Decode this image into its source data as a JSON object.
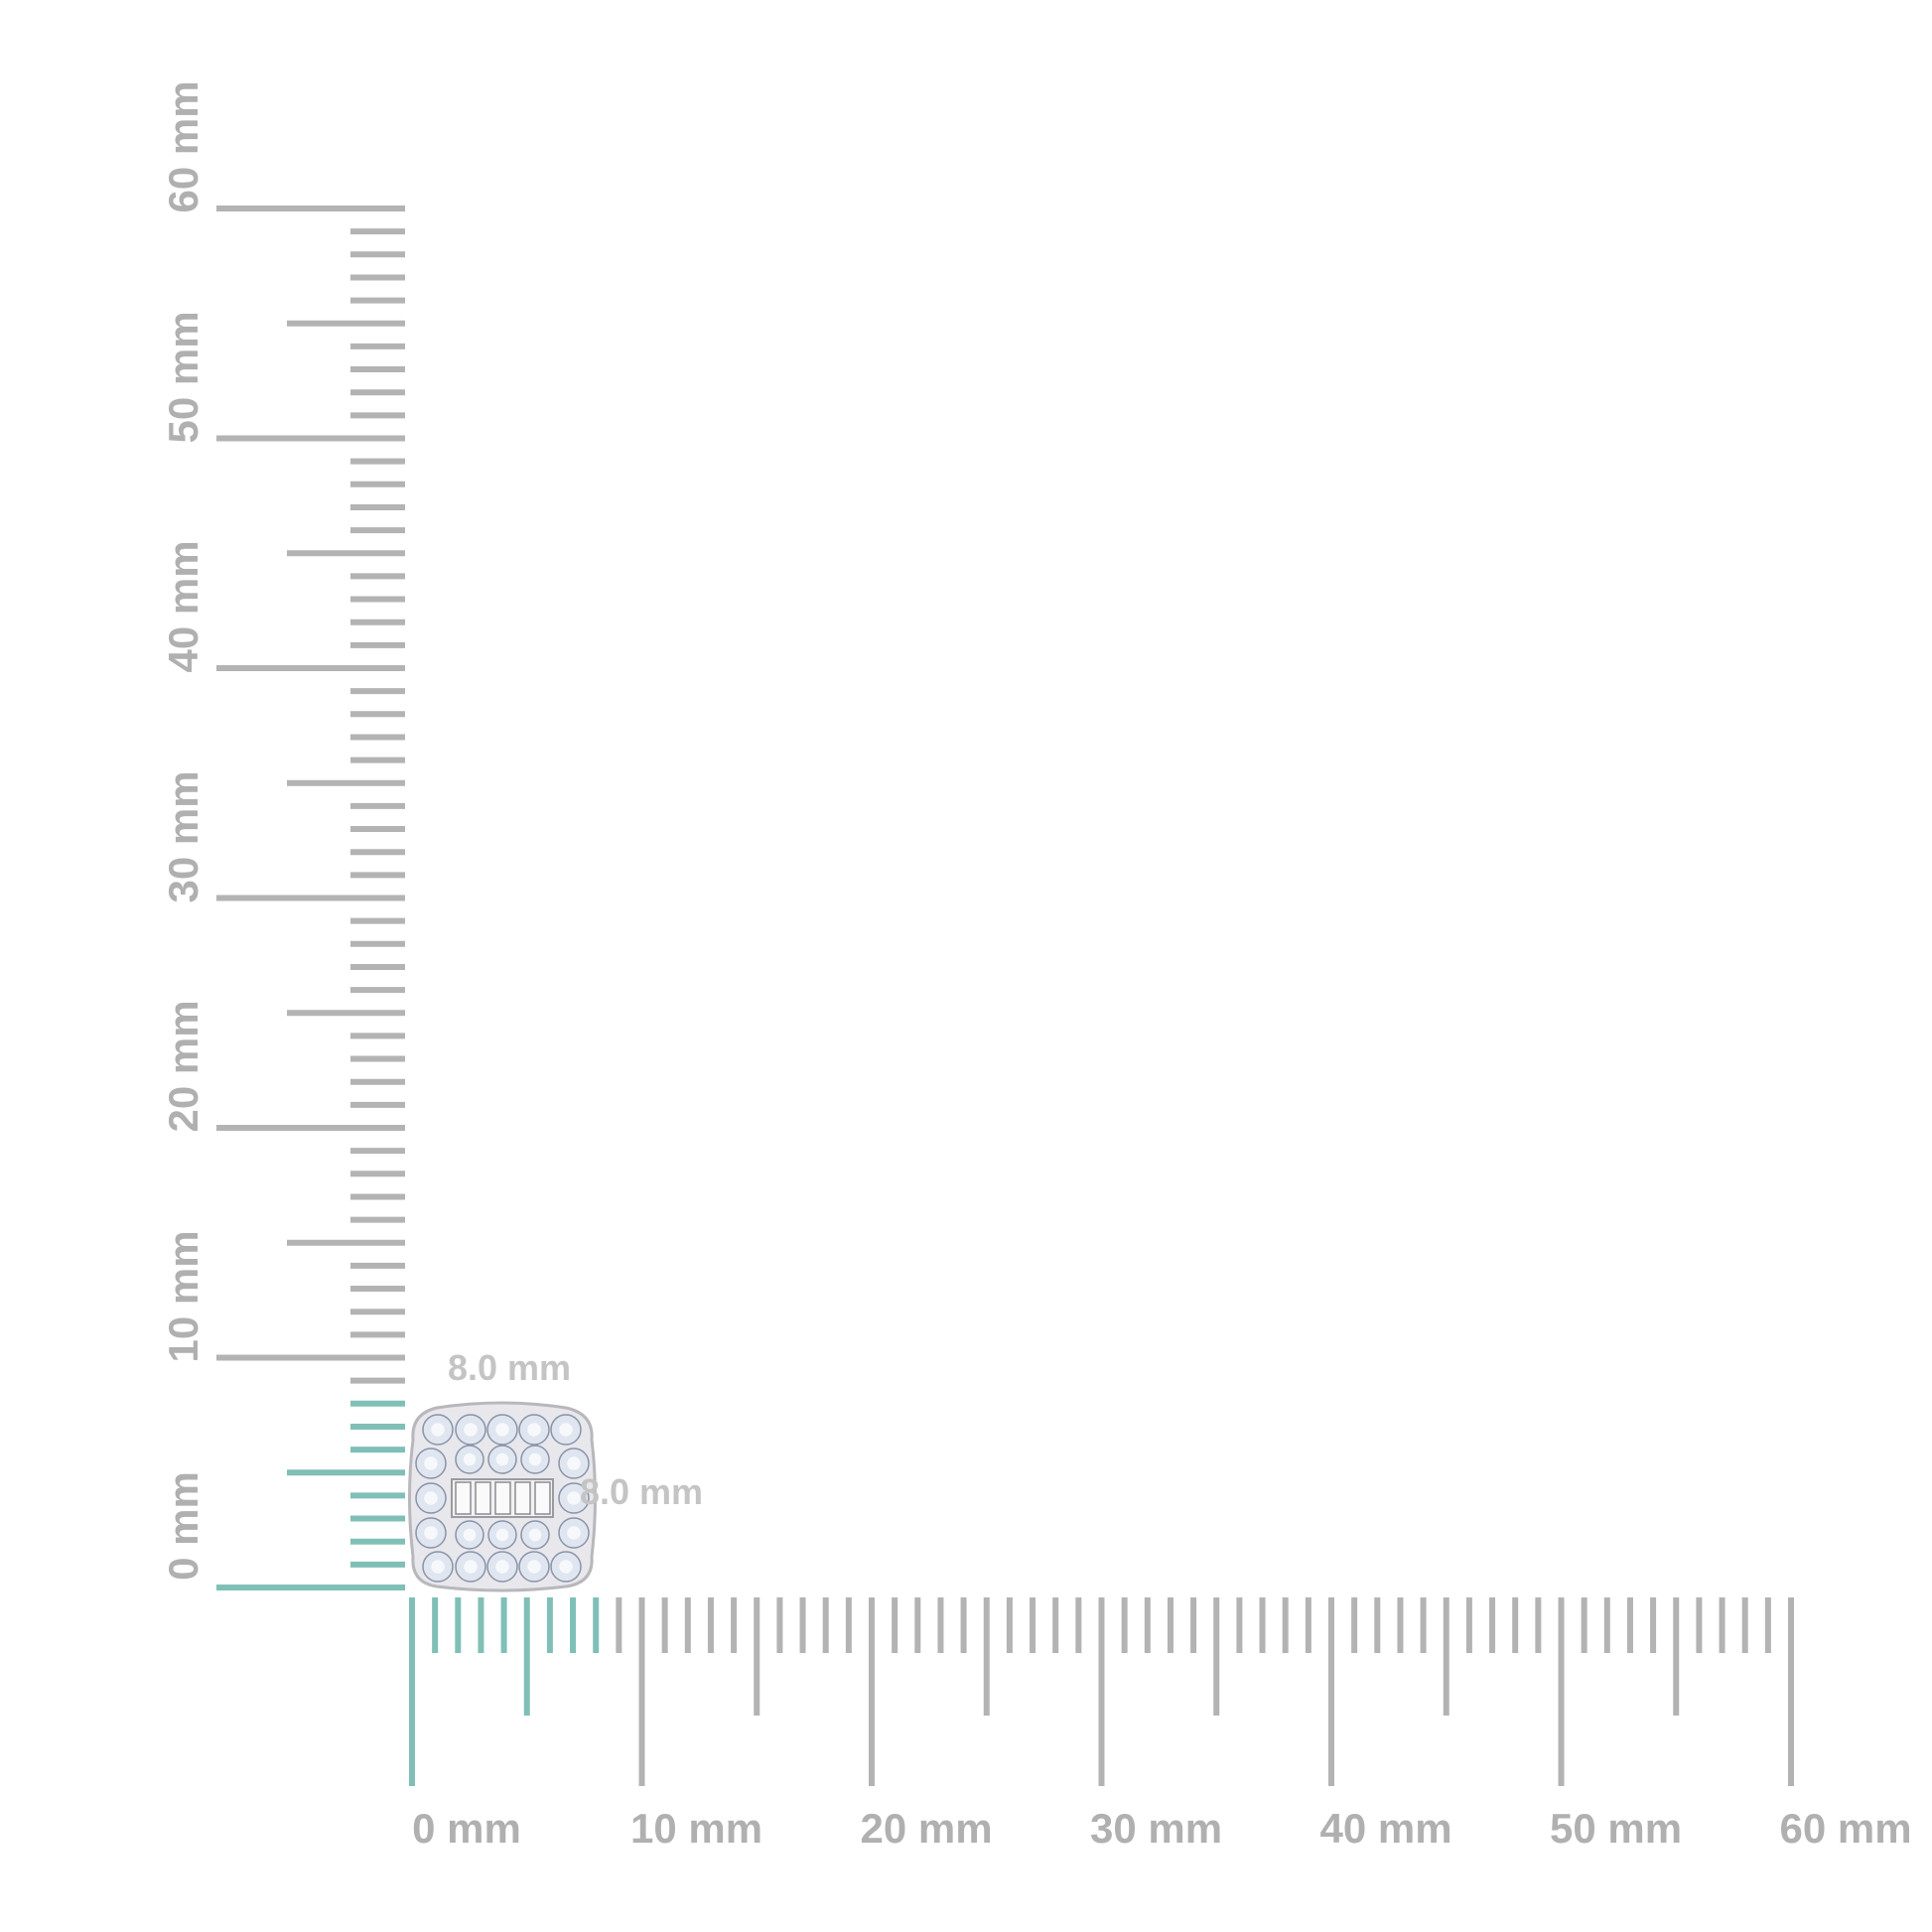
{
  "ruler": {
    "unit": "mm",
    "range": [
      0,
      60
    ],
    "major_step": 10,
    "minor_step": 1,
    "highlight_to": 8,
    "x_labels": [
      "0 mm",
      "10 mm",
      "20 mm",
      "30 mm",
      "40 mm",
      "50 mm",
      "60 mm"
    ],
    "y_labels": [
      "0 mm",
      "10 mm",
      "20 mm",
      "30 mm",
      "40 mm",
      "50 mm",
      "60 mm"
    ]
  },
  "product": {
    "width_label": "8.0 mm",
    "height_label": "8.0 mm",
    "width_mm": 8.0,
    "height_mm": 8.0
  },
  "colors": {
    "ruler": "#b3b3b3",
    "highlight": "#80bfb7",
    "dimension_text": "#c4c4c4"
  }
}
